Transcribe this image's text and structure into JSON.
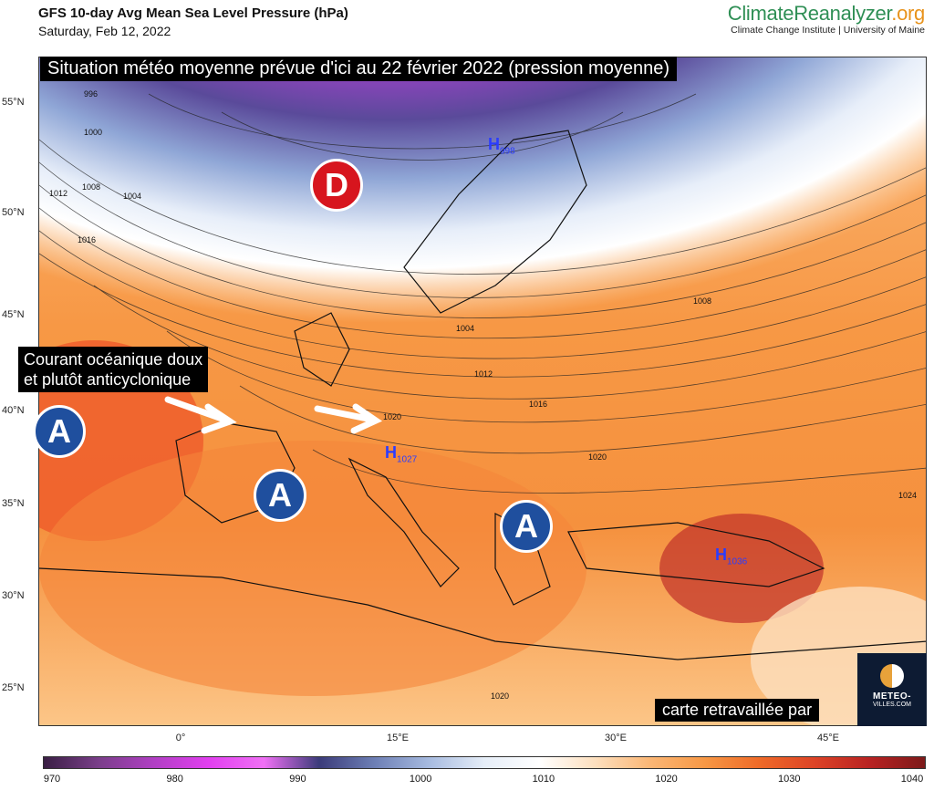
{
  "header": {
    "title": "GFS 10-day Avg Mean Sea Level Pressure (hPa)",
    "date": "Saturday, Feb 12, 2022"
  },
  "brand": {
    "name_part1": "ClimateReanalyzer",
    "name_part2": ".org",
    "subtitle": "Climate Change Institute | University of Maine"
  },
  "map": {
    "banner": "Situation météo moyenne prévue d'ici au 22 février 2022 (pression moyenne)",
    "callout_line1": "Courant océanique doux",
    "callout_line2": "et plutôt anticyclonique",
    "low_label": "D",
    "high_label": "A",
    "credit": "carte retravaillée par",
    "logo_line1": "METEO-",
    "logo_line2": "VILLES.COM",
    "high_centers": [
      {
        "symbol": "H",
        "value": "998"
      },
      {
        "symbol": "H",
        "value": "1027"
      },
      {
        "symbol": "H",
        "value": "1036"
      }
    ],
    "isobar_labels": [
      "996",
      "1000",
      "1004",
      "1008",
      "1012",
      "1016",
      "1020",
      "1024"
    ],
    "lat_labels": [
      "55°N",
      "50°N",
      "45°N",
      "40°N",
      "35°N",
      "30°N",
      "25°N"
    ],
    "lon_labels": [
      "0°",
      "15°E",
      "30°E",
      "45°E"
    ]
  },
  "colorbar": {
    "ticks": [
      "970",
      "980",
      "990",
      "1000",
      "1010",
      "1020",
      "1030",
      "1040"
    ],
    "colors": [
      "#3a1f44",
      "#7a3e8a",
      "#b13fc4",
      "#e23ff0",
      "#f070f5",
      "#3b3b7a",
      "#6d7fb5",
      "#a7bbe0",
      "#e6eef8",
      "#ffffff",
      "#fde0bf",
      "#fbb776",
      "#f79845",
      "#ef6a28",
      "#dd4326",
      "#b82222",
      "#7d1a1a"
    ]
  }
}
